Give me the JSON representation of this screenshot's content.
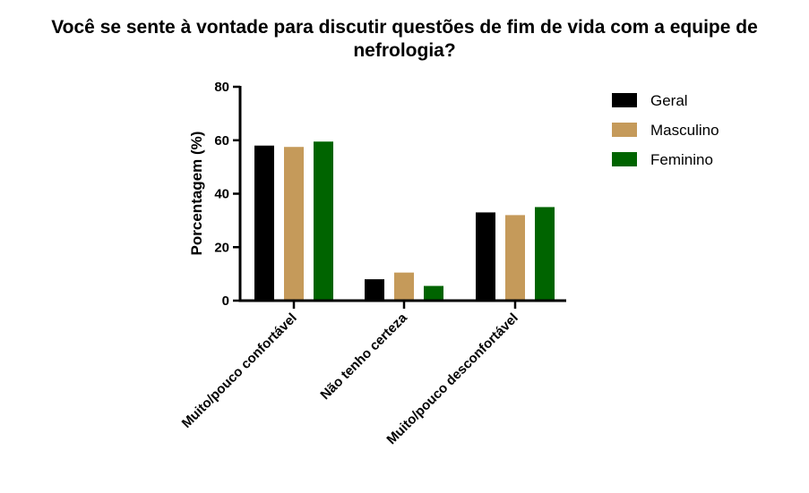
{
  "chart_data": {
    "type": "bar",
    "title": "Você se sente à vontade para discutir questões de fim de vida com a equipe de nefrologia?",
    "xlabel": "",
    "ylabel": "Porcentagem (%)",
    "ylim": [
      0,
      80
    ],
    "yticks": [
      0,
      20,
      40,
      60,
      80
    ],
    "categories": [
      "Muito/pouco confortável",
      "Não tenho certeza",
      "Muito/pouco desconfortável"
    ],
    "series": [
      {
        "name": "Geral",
        "color": "#000000",
        "values": [
          58,
          8,
          33
        ]
      },
      {
        "name": "Masculino",
        "color": "#C59A5A",
        "values": [
          57.5,
          10.5,
          32
        ]
      },
      {
        "name": "Feminino",
        "color": "#006400",
        "values": [
          59.5,
          5.5,
          35
        ]
      }
    ],
    "legend_position": "top-right",
    "grid": false
  }
}
